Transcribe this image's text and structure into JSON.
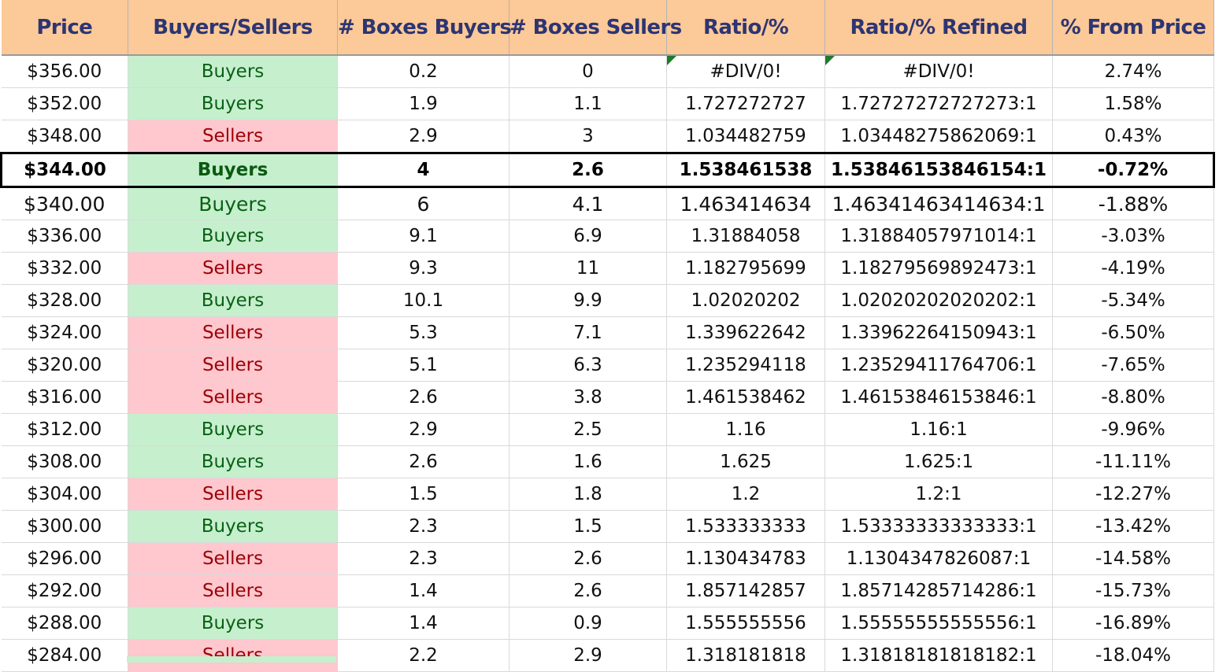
{
  "columns": [
    "Price",
    "Buyers/Sellers",
    "# Boxes Buyers",
    "# Boxes Sellers",
    "Ratio/%",
    "Ratio/% Refined",
    "% From Price"
  ],
  "rows": [
    [
      "$356.00",
      "Buyers",
      "0.2",
      "0",
      "#DIV/0!",
      "#DIV/0!",
      "2.74%"
    ],
    [
      "$352.00",
      "Buyers",
      "1.9",
      "1.1",
      "1.727272727",
      "1.72727272727273:1",
      "1.58%"
    ],
    [
      "$348.00",
      "Sellers",
      "2.9",
      "3",
      "1.034482759",
      "1.03448275862069:1",
      "0.43%"
    ],
    [
      "$344.00",
      "Buyers",
      "4",
      "2.6",
      "1.538461538",
      "1.53846153846154:1",
      "-0.72%"
    ],
    [
      "$340.00",
      "Buyers",
      "6",
      "4.1",
      "1.463414634",
      "1.46341463414634:1",
      "-1.88%"
    ],
    [
      "$336.00",
      "Buyers",
      "9.1",
      "6.9",
      "1.31884058",
      "1.31884057971014:1",
      "-3.03%"
    ],
    [
      "$332.00",
      "Sellers",
      "9.3",
      "11",
      "1.182795699",
      "1.18279569892473:1",
      "-4.19%"
    ],
    [
      "$328.00",
      "Buyers",
      "10.1",
      "9.9",
      "1.02020202",
      "1.02020202020202:1",
      "-5.34%"
    ],
    [
      "$324.00",
      "Sellers",
      "5.3",
      "7.1",
      "1.339622642",
      "1.33962264150943:1",
      "-6.50%"
    ],
    [
      "$320.00",
      "Sellers",
      "5.1",
      "6.3",
      "1.235294118",
      "1.23529411764706:1",
      "-7.65%"
    ],
    [
      "$316.00",
      "Sellers",
      "2.6",
      "3.8",
      "1.461538462",
      "1.46153846153846:1",
      "-8.80%"
    ],
    [
      "$312.00",
      "Buyers",
      "2.9",
      "2.5",
      "1.16",
      "1.16:1",
      "-9.96%"
    ],
    [
      "$308.00",
      "Buyers",
      "2.6",
      "1.6",
      "1.625",
      "1.625:1",
      "-11.11%"
    ],
    [
      "$304.00",
      "Sellers",
      "1.5",
      "1.8",
      "1.2",
      "1.2:1",
      "-12.27%"
    ],
    [
      "$300.00",
      "Buyers",
      "2.3",
      "1.5",
      "1.533333333",
      "1.53333333333333:1",
      "-13.42%"
    ],
    [
      "$296.00",
      "Sellers",
      "2.3",
      "2.6",
      "1.130434783",
      "1.1304347826087:1",
      "-14.58%"
    ],
    [
      "$292.00",
      "Sellers",
      "1.4",
      "2.6",
      "1.857142857",
      "1.85714285714286:1",
      "-15.73%"
    ],
    [
      "$288.00",
      "Buyers",
      "1.4",
      "0.9",
      "1.555555556",
      "1.55555555555556:1",
      "-16.89%"
    ],
    [
      "$284.00",
      "Sellers",
      "2.2",
      "2.9",
      "1.318181818",
      "1.31818181818182:1",
      "-18.04%"
    ]
  ],
  "highlight_row_index": 3,
  "larger_font_row_index": 4,
  "colors": {
    "header_bg": "#fcc998",
    "header_text": "#2d3572",
    "buyers_bg": "#c6efce",
    "buyers_text": "#0a6115",
    "sellers_bg": "#ffc7ce",
    "sellers_text": "#9c0006",
    "error_marker": "#1f7a2e"
  }
}
